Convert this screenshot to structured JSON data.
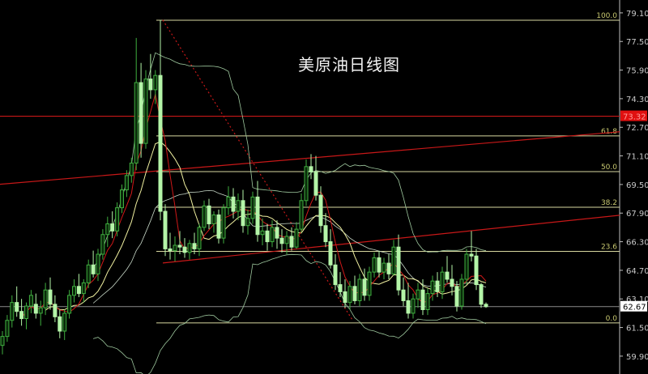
{
  "chart_data": {
    "type": "candlestick",
    "title": "美原油日线图",
    "ylim": [
      58.9,
      79.82
    ],
    "y_ticks": [
      "79.10",
      "77.50",
      "75.90",
      "74.30",
      "72.70",
      "71.10",
      "69.50",
      "67.90",
      "66.30",
      "64.70",
      "63.10",
      "61.50",
      "59.90"
    ],
    "grid": false,
    "colors": {
      "background": "#000000",
      "up_candle": "#3fae3f",
      "down_candle": "#b4f5a8",
      "ma5": "#d01818",
      "ma10": "#f0f0a0",
      "ma20": "#c8d8c8",
      "bands": "#9ec89e",
      "fib": "#d8d8a0",
      "trendline": "#c81818",
      "axis": "#c0c0c0"
    },
    "price_labels": {
      "current": {
        "value": 62.67,
        "text": "62.67"
      },
      "resistance": {
        "value": 73.32,
        "text": "73.32"
      }
    },
    "fibonacci": {
      "start_index": 33,
      "levels": [
        {
          "label": "100.0",
          "value": 78.69
        },
        {
          "label": "61.8",
          "value": 72.22
        },
        {
          "label": "50.0",
          "value": 70.22
        },
        {
          "label": "38.2",
          "value": 68.23
        },
        {
          "label": "23.6",
          "value": 65.76
        },
        {
          "label": "0.0",
          "value": 61.76
        }
      ]
    },
    "trendlines": [
      {
        "style": "solid",
        "from": [
          -1,
          69.5
        ],
        "to": [
          127.5,
          72.45
        ]
      },
      {
        "style": "solid",
        "from": [
          33.5,
          65.11
        ],
        "to": [
          127.5,
          67.78
        ]
      },
      {
        "style": "dotted",
        "from": [
          33.5,
          78.7
        ],
        "to": [
          72.5,
          61.93
        ]
      }
    ],
    "indicators": [
      "MA5",
      "MA10",
      "MA20",
      "Bollinger(20)"
    ],
    "candles": [
      [
        60.5,
        61.3,
        60.0,
        61.0
      ],
      [
        61.0,
        62.2,
        60.7,
        61.9
      ],
      [
        61.9,
        63.3,
        61.5,
        62.9
      ],
      [
        62.9,
        63.8,
        62.1,
        62.4
      ],
      [
        62.4,
        63.1,
        61.6,
        62.0
      ],
      [
        62.0,
        62.9,
        61.4,
        62.7
      ],
      [
        62.7,
        63.6,
        62.3,
        63.3
      ],
      [
        62.8,
        63.4,
        62.0,
        62.3
      ],
      [
        62.3,
        63.0,
        61.6,
        62.6
      ],
      [
        62.6,
        64.0,
        62.2,
        63.6
      ],
      [
        63.6,
        64.3,
        62.5,
        62.8
      ],
      [
        62.8,
        63.3,
        61.8,
        62.1
      ],
      [
        62.1,
        62.5,
        60.9,
        61.3
      ],
      [
        61.3,
        62.5,
        60.8,
        62.3
      ],
      [
        62.3,
        63.6,
        62.0,
        63.3
      ],
      [
        63.3,
        64.2,
        62.9,
        63.8
      ],
      [
        63.8,
        64.5,
        63.2,
        63.4
      ],
      [
        63.4,
        64.2,
        62.9,
        64.0
      ],
      [
        64.0,
        65.3,
        63.7,
        65.0
      ],
      [
        65.0,
        65.8,
        64.3,
        64.5
      ],
      [
        64.5,
        65.9,
        64.1,
        65.6
      ],
      [
        65.6,
        67.0,
        65.3,
        66.7
      ],
      [
        66.7,
        67.7,
        66.0,
        67.3
      ],
      [
        67.3,
        68.0,
        66.5,
        66.9
      ],
      [
        66.9,
        68.5,
        66.6,
        68.2
      ],
      [
        68.2,
        69.5,
        67.9,
        69.2
      ],
      [
        69.2,
        70.3,
        68.8,
        70.0
      ],
      [
        70.0,
        71.0,
        69.6,
        70.7
      ],
      [
        70.7,
        77.7,
        70.3,
        75.2
      ],
      [
        75.2,
        76.3,
        71.0,
        71.8
      ],
      [
        71.8,
        75.9,
        71.5,
        75.4
      ],
      [
        75.4,
        76.8,
        74.3,
        74.8
      ],
      [
        74.8,
        75.9,
        74.0,
        75.6
      ],
      [
        75.6,
        78.7,
        67.5,
        68.0
      ],
      [
        68.0,
        68.4,
        65.5,
        65.9
      ],
      [
        65.9,
        66.8,
        65.3,
        65.8
      ],
      [
        65.8,
        66.6,
        65.2,
        66.1
      ],
      [
        66.1,
        66.9,
        65.6,
        66.0
      ],
      [
        66.0,
        66.5,
        65.4,
        65.7
      ],
      [
        65.7,
        66.4,
        65.3,
        66.2
      ],
      [
        66.2,
        66.8,
        65.6,
        65.9
      ],
      [
        65.9,
        67.3,
        65.5,
        67.1
      ],
      [
        67.1,
        68.6,
        66.9,
        68.3
      ],
      [
        68.3,
        68.7,
        67.0,
        67.3
      ],
      [
        67.3,
        68.0,
        66.8,
        67.8
      ],
      [
        67.8,
        68.1,
        66.2,
        66.5
      ],
      [
        66.5,
        68.4,
        66.2,
        68.2
      ],
      [
        68.2,
        69.4,
        67.8,
        68.8
      ],
      [
        68.8,
        69.3,
        67.6,
        68.0
      ],
      [
        68.0,
        69.0,
        67.5,
        68.6
      ],
      [
        68.6,
        69.2,
        66.8,
        67.2
      ],
      [
        67.2,
        68.1,
        66.7,
        67.6
      ],
      [
        67.6,
        69.1,
        67.3,
        68.8
      ],
      [
        68.8,
        69.7,
        66.3,
        66.7
      ],
      [
        66.7,
        67.6,
        66.1,
        66.9
      ],
      [
        66.9,
        67.3,
        65.8,
        66.3
      ],
      [
        66.3,
        67.5,
        66.0,
        67.1
      ],
      [
        67.1,
        67.5,
        65.9,
        66.5
      ],
      [
        66.5,
        67.0,
        65.7,
        66.2
      ],
      [
        66.2,
        66.9,
        65.6,
        66.6
      ],
      [
        66.6,
        67.1,
        65.8,
        66.0
      ],
      [
        66.0,
        67.4,
        65.9,
        67.0
      ],
      [
        67.0,
        69.0,
        66.8,
        68.6
      ],
      [
        68.6,
        70.9,
        68.3,
        70.5
      ],
      [
        70.5,
        71.2,
        69.8,
        70.2
      ],
      [
        70.2,
        71.1,
        68.6,
        68.9
      ],
      [
        68.9,
        69.4,
        66.8,
        67.2
      ],
      [
        67.2,
        67.9,
        66.0,
        66.3
      ],
      [
        66.3,
        67.0,
        64.8,
        65.0
      ],
      [
        65.0,
        65.6,
        63.6,
        63.9
      ],
      [
        63.9,
        64.6,
        63.2,
        63.5
      ],
      [
        63.5,
        64.2,
        62.6,
        62.9
      ],
      [
        62.9,
        64.1,
        62.5,
        63.8
      ],
      [
        63.8,
        64.4,
        62.8,
        63.0
      ],
      [
        63.0,
        64.5,
        62.7,
        64.2
      ],
      [
        64.2,
        64.8,
        63.0,
        63.3
      ],
      [
        63.3,
        64.9,
        63.0,
        64.6
      ],
      [
        64.6,
        65.7,
        64.3,
        65.4
      ],
      [
        65.4,
        65.8,
        64.3,
        64.6
      ],
      [
        64.6,
        65.4,
        64.2,
        65.1
      ],
      [
        65.1,
        65.6,
        64.2,
        64.5
      ],
      [
        64.5,
        66.4,
        64.4,
        66.0
      ],
      [
        66.0,
        66.7,
        63.3,
        63.6
      ],
      [
        63.6,
        64.3,
        62.7,
        63.0
      ],
      [
        63.0,
        64.0,
        62.0,
        62.3
      ],
      [
        62.3,
        63.4,
        62.0,
        63.1
      ],
      [
        63.1,
        64.0,
        62.6,
        63.6
      ],
      [
        63.6,
        64.2,
        62.2,
        62.5
      ],
      [
        62.5,
        63.7,
        62.2,
        63.4
      ],
      [
        63.4,
        64.4,
        63.0,
        64.1
      ],
      [
        64.1,
        64.6,
        63.2,
        63.5
      ],
      [
        63.5,
        64.9,
        63.1,
        64.6
      ],
      [
        64.6,
        65.5,
        64.0,
        64.2
      ],
      [
        64.2,
        65.0,
        63.3,
        63.8
      ],
      [
        63.8,
        64.1,
        62.4,
        62.7
      ],
      [
        62.7,
        64.5,
        62.5,
        64.2
      ],
      [
        64.2,
        65.9,
        63.9,
        65.6
      ],
      [
        65.6,
        66.9,
        65.2,
        65.5
      ],
      [
        65.5,
        65.9,
        63.6,
        63.9
      ],
      [
        63.9,
        64.0,
        62.6,
        62.8
      ],
      [
        62.8,
        62.9,
        62.6,
        62.67
      ]
    ]
  }
}
